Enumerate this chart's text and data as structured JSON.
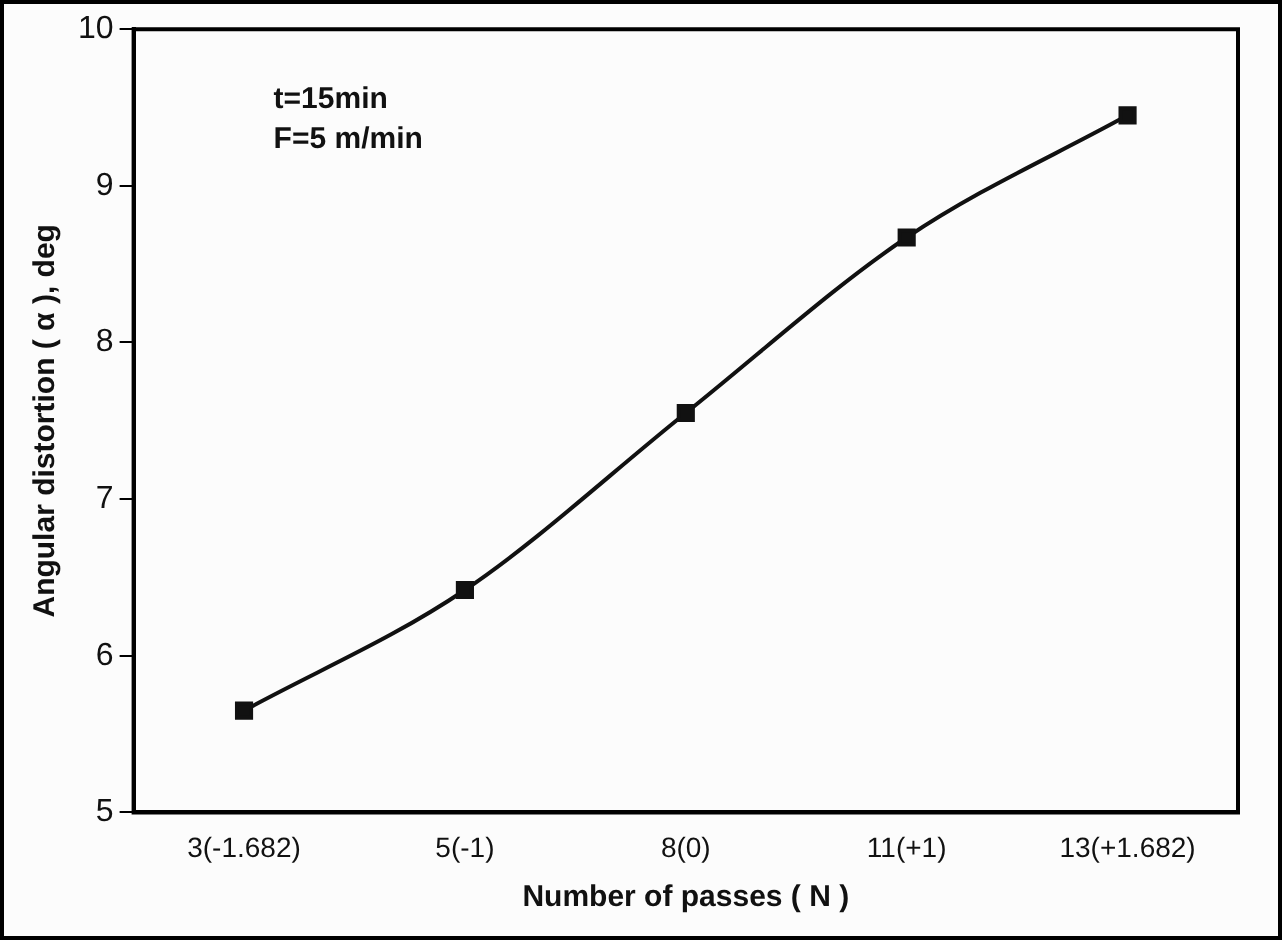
{
  "chart_data": {
    "type": "line",
    "xlabel": "Number of passes ( N )",
    "ylabel": "Angular distortion ( α ), deg",
    "categories": [
      "3(-1.682)",
      "5(-1)",
      "8(0)",
      "11(+1)",
      "13(+1.682)"
    ],
    "series": [
      {
        "color": "#111111",
        "values": [
          5.65,
          6.42,
          7.55,
          8.67,
          9.45
        ]
      }
    ],
    "ylim": [
      5,
      10
    ],
    "yticks": [
      5,
      6,
      7,
      8,
      9,
      10
    ],
    "grid": false,
    "legend": false,
    "marker": "square",
    "line_style": "solid",
    "annotations": [
      "t=15min",
      "F=5 m/min"
    ]
  }
}
